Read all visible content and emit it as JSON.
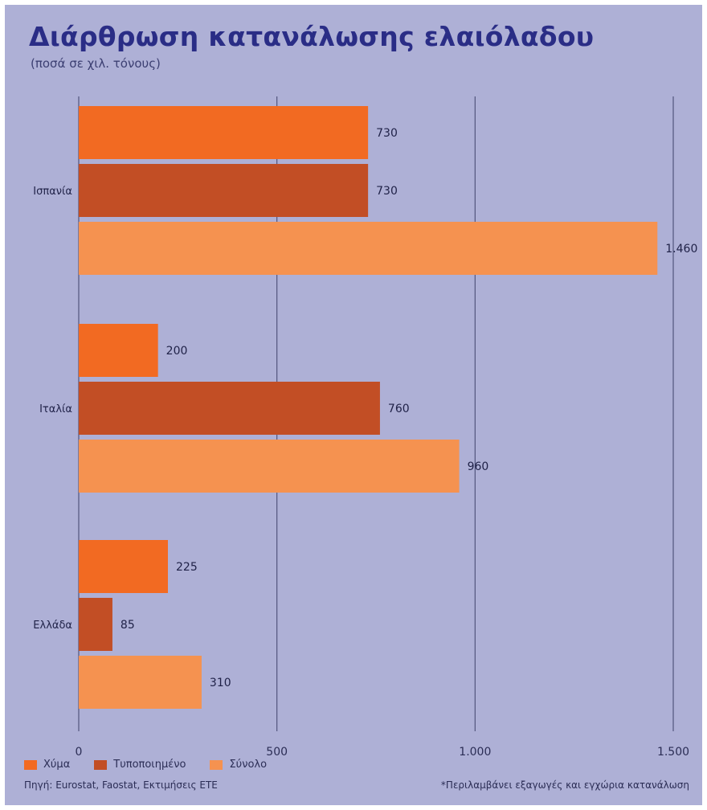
{
  "header": {
    "title": "Διάρθρωση κατανάλωσης ελαιόλαδου",
    "subtitle": "(ποσά σε χιλ. τόνους)"
  },
  "legend": {
    "items": [
      {
        "label": "Χύμα",
        "color": "#f26a22"
      },
      {
        "label": "Τυποποιημένο",
        "color": "#c24e25"
      },
      {
        "label": "Σύνολο",
        "color": "#f59250"
      }
    ]
  },
  "footer": {
    "source": "Πηγή: Eurostat, Faostat, Εκτιμήσεις ΕΤΕ",
    "note": "*Περιλαμβάνει εξαγωγές και εγχώρια κατανάλωση"
  },
  "chart_data": {
    "type": "bar",
    "orientation": "horizontal",
    "categories": [
      "Ισπανία",
      "Ιταλία",
      "Ελλάδα"
    ],
    "series": [
      {
        "name": "Χύμα",
        "color": "#f26a22",
        "values": [
          730,
          200,
          225
        ],
        "labels": [
          "730",
          "200",
          "225"
        ]
      },
      {
        "name": "Τυποποιημένο",
        "color": "#c24e25",
        "values": [
          730,
          760,
          85
        ],
        "labels": [
          "730",
          "760",
          "85"
        ]
      },
      {
        "name": "Σύνολο",
        "color": "#f59250",
        "values": [
          1460,
          960,
          310
        ],
        "labels": [
          "1.460",
          "960",
          "310"
        ]
      }
    ],
    "xlim": [
      0,
      1500
    ],
    "xticks": [
      0,
      500,
      1000,
      1500
    ],
    "xtick_labels": [
      "0",
      "500",
      "1.000",
      "1.500"
    ],
    "grid": "vertical",
    "legend_position": "bottom-left",
    "title": "Διάρθρωση κατανάλωσης ελαιόλαδου",
    "subtitle": "(ποσά σε χιλ. τόνους)"
  }
}
